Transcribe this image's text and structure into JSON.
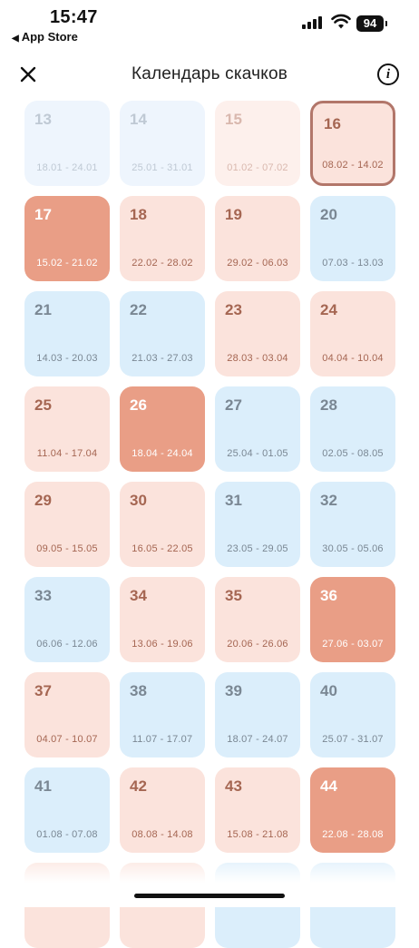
{
  "status_bar": {
    "time": "15:47",
    "back_app": "App Store",
    "battery": "94"
  },
  "navbar": {
    "title": "Календарь скачков",
    "info_label": "i"
  },
  "colors": {
    "accent_red": "#e99e86",
    "pink": "#fbe3dc",
    "blue": "#dbeefb",
    "current_border": "#b2766a"
  },
  "weeks": [
    {
      "num": "13",
      "range": "18.01 - 24.01",
      "type": "past-blue"
    },
    {
      "num": "14",
      "range": "25.01 - 31.01",
      "type": "past-blue"
    },
    {
      "num": "15",
      "range": "01.02 - 07.02",
      "type": "past-pink"
    },
    {
      "num": "16",
      "range": "08.02 - 14.02",
      "type": "current"
    },
    {
      "num": "17",
      "range": "15.02 - 21.02",
      "type": "red"
    },
    {
      "num": "18",
      "range": "22.02 - 28.02",
      "type": "pink"
    },
    {
      "num": "19",
      "range": "29.02 - 06.03",
      "type": "pink"
    },
    {
      "num": "20",
      "range": "07.03 - 13.03",
      "type": "blue"
    },
    {
      "num": "21",
      "range": "14.03 - 20.03",
      "type": "blue"
    },
    {
      "num": "22",
      "range": "21.03 - 27.03",
      "type": "blue"
    },
    {
      "num": "23",
      "range": "28.03 - 03.04",
      "type": "pink"
    },
    {
      "num": "24",
      "range": "04.04 - 10.04",
      "type": "pink"
    },
    {
      "num": "25",
      "range": "11.04 - 17.04",
      "type": "pink"
    },
    {
      "num": "26",
      "range": "18.04 - 24.04",
      "type": "red"
    },
    {
      "num": "27",
      "range": "25.04 - 01.05",
      "type": "blue"
    },
    {
      "num": "28",
      "range": "02.05 - 08.05",
      "type": "blue"
    },
    {
      "num": "29",
      "range": "09.05 - 15.05",
      "type": "pink"
    },
    {
      "num": "30",
      "range": "16.05 - 22.05",
      "type": "pink"
    },
    {
      "num": "31",
      "range": "23.05 - 29.05",
      "type": "blue"
    },
    {
      "num": "32",
      "range": "30.05 - 05.06",
      "type": "blue"
    },
    {
      "num": "33",
      "range": "06.06 - 12.06",
      "type": "blue"
    },
    {
      "num": "34",
      "range": "13.06 - 19.06",
      "type": "pink"
    },
    {
      "num": "35",
      "range": "20.06 - 26.06",
      "type": "pink"
    },
    {
      "num": "36",
      "range": "27.06 - 03.07",
      "type": "red"
    },
    {
      "num": "37",
      "range": "04.07 - 10.07",
      "type": "pink"
    },
    {
      "num": "38",
      "range": "11.07 - 17.07",
      "type": "blue"
    },
    {
      "num": "39",
      "range": "18.07 - 24.07",
      "type": "blue"
    },
    {
      "num": "40",
      "range": "25.07 - 31.07",
      "type": "blue"
    },
    {
      "num": "41",
      "range": "01.08 - 07.08",
      "type": "blue"
    },
    {
      "num": "42",
      "range": "08.08 - 14.08",
      "type": "pink"
    },
    {
      "num": "43",
      "range": "15.08 - 21.08",
      "type": "pink"
    },
    {
      "num": "44",
      "range": "22.08 - 28.08",
      "type": "red"
    },
    {
      "num": "",
      "range": "",
      "type": "pink"
    },
    {
      "num": "",
      "range": "",
      "type": "pink"
    },
    {
      "num": "",
      "range": "",
      "type": "blue"
    },
    {
      "num": "",
      "range": "",
      "type": "blue"
    }
  ]
}
